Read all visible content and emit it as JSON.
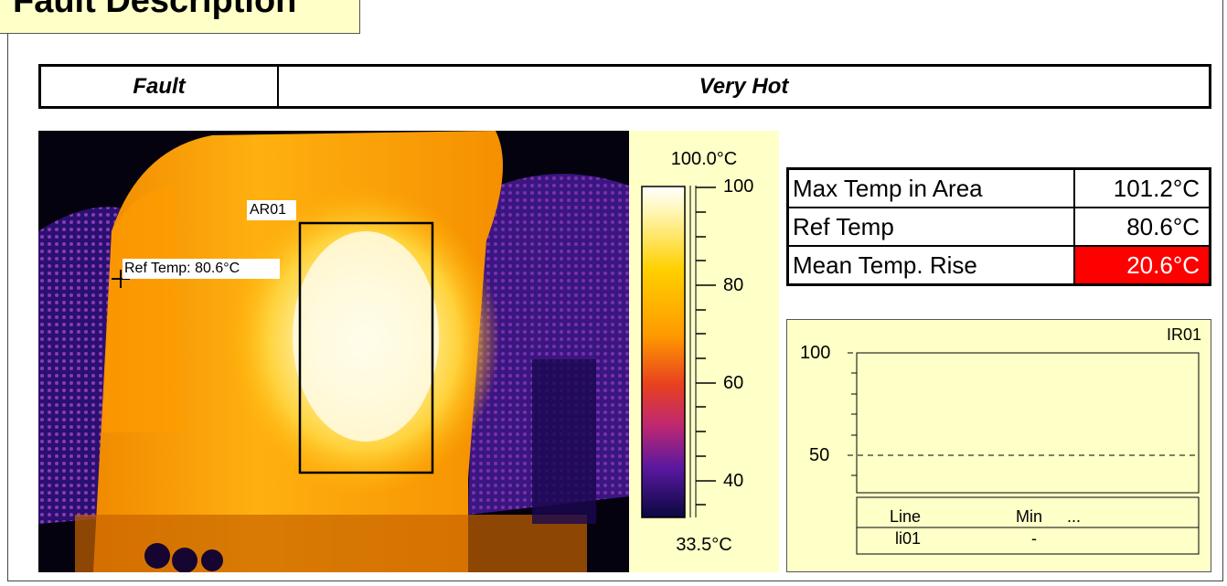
{
  "header": {
    "title": "Fault Description"
  },
  "fault": {
    "label": "Fault",
    "value": "Very Hot"
  },
  "thermal_image": {
    "area_label": "AR01",
    "ref_label": "Ref Temp: 80.6°C"
  },
  "scale": {
    "max_label": "100.0°C",
    "min_label": "33.5°C",
    "ticks": [
      "100",
      "80",
      "60",
      "40"
    ]
  },
  "temps": {
    "rows": [
      {
        "label": "Max Temp in Area",
        "value": "101.2°C",
        "highlight": false
      },
      {
        "label": "Ref Temp",
        "value": "80.6°C",
        "highlight": false
      },
      {
        "label": "Mean Temp. Rise",
        "value": "20.6°C",
        "highlight": true
      }
    ],
    "highlight_color": "#ff0000"
  },
  "profile_chart": {
    "title": "IR01",
    "y_ticks": [
      "100",
      "50"
    ],
    "legend_headers": [
      "Line",
      "Min",
      "..."
    ],
    "legend_rows": [
      {
        "line": "li01",
        "min": "-"
      }
    ]
  },
  "colors": {
    "panel_bg": "#ffffc8"
  }
}
